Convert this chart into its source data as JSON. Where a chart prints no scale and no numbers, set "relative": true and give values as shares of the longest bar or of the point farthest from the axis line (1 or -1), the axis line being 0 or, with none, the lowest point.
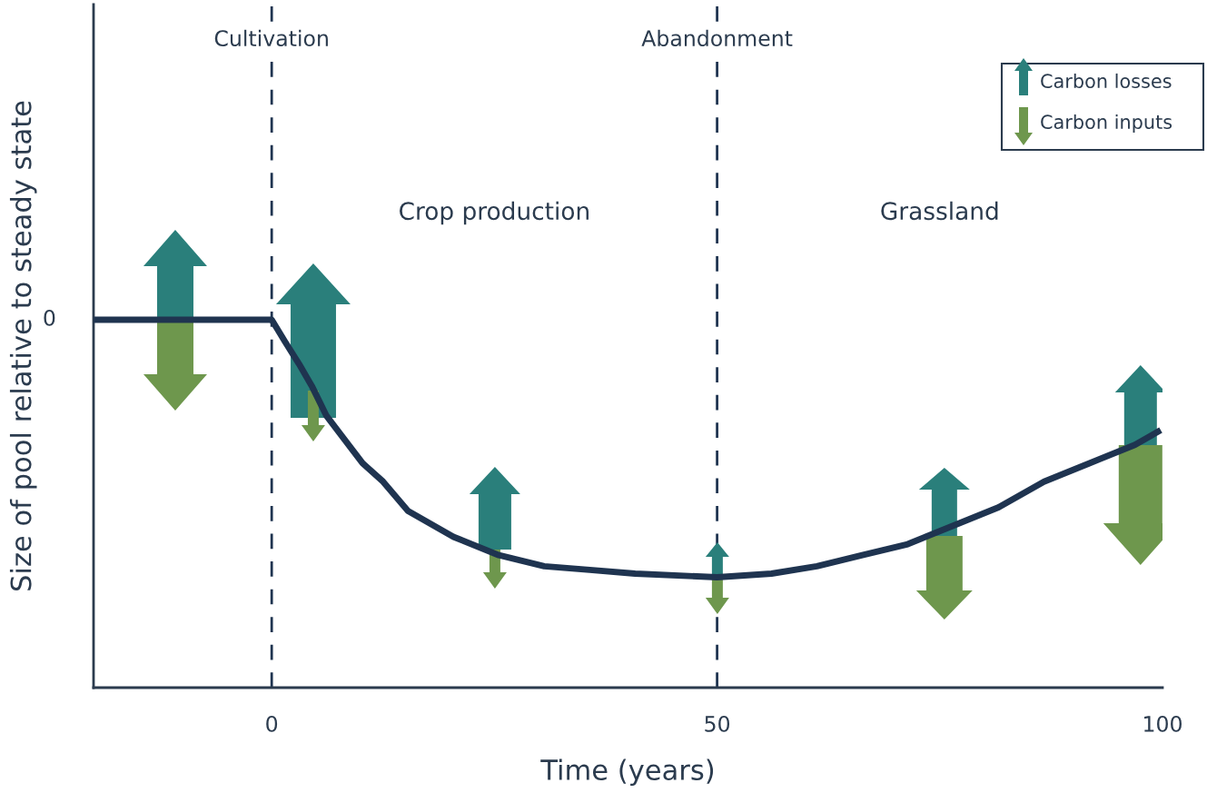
{
  "chart_data": {
    "type": "line",
    "relative": true,
    "xlabel": "Time (years)",
    "ylabel": "Size of pool relative to steady state",
    "x": [
      -20,
      0,
      1.5,
      3.06,
      4.5,
      6.12,
      8,
      10.2,
      12.5,
      15.3,
      20.4,
      25.5,
      30.6,
      35.7,
      40.8,
      50,
      56.1,
      61.2,
      66.3,
      71.4,
      76.5,
      81.6,
      86.7,
      91.8,
      96.9,
      99.8
    ],
    "series": [
      {
        "color": "#1f3450",
        "values": [
          1.0,
          1.0,
          0.94,
          0.88,
          0.82,
          0.74,
          0.68,
          0.61,
          0.56,
          0.48,
          0.41,
          0.36,
          0.33,
          0.32,
          0.31,
          0.3,
          0.31,
          0.33,
          0.36,
          0.39,
          0.44,
          0.49,
          0.56,
          0.61,
          0.66,
          0.7
        ]
      }
    ],
    "xlim": [
      -20,
      100
    ],
    "xticks": [
      0,
      50,
      100
    ],
    "ref_lines": [
      {
        "axis": "x",
        "value": 0,
        "label": "Cultivation",
        "color": "#1f3450",
        "line_style": "dashed"
      },
      {
        "axis": "x",
        "value": 50,
        "label": "Abandonment",
        "color": "#1f3450",
        "line_style": "dashed"
      }
    ],
    "annotations": [
      {
        "text": "0",
        "x": -20,
        "y": 1.0
      },
      "Crop production",
      "Grassland",
      "Carbon losses",
      "Carbon inputs"
    ],
    "grid": false,
    "legend": false
  }
}
